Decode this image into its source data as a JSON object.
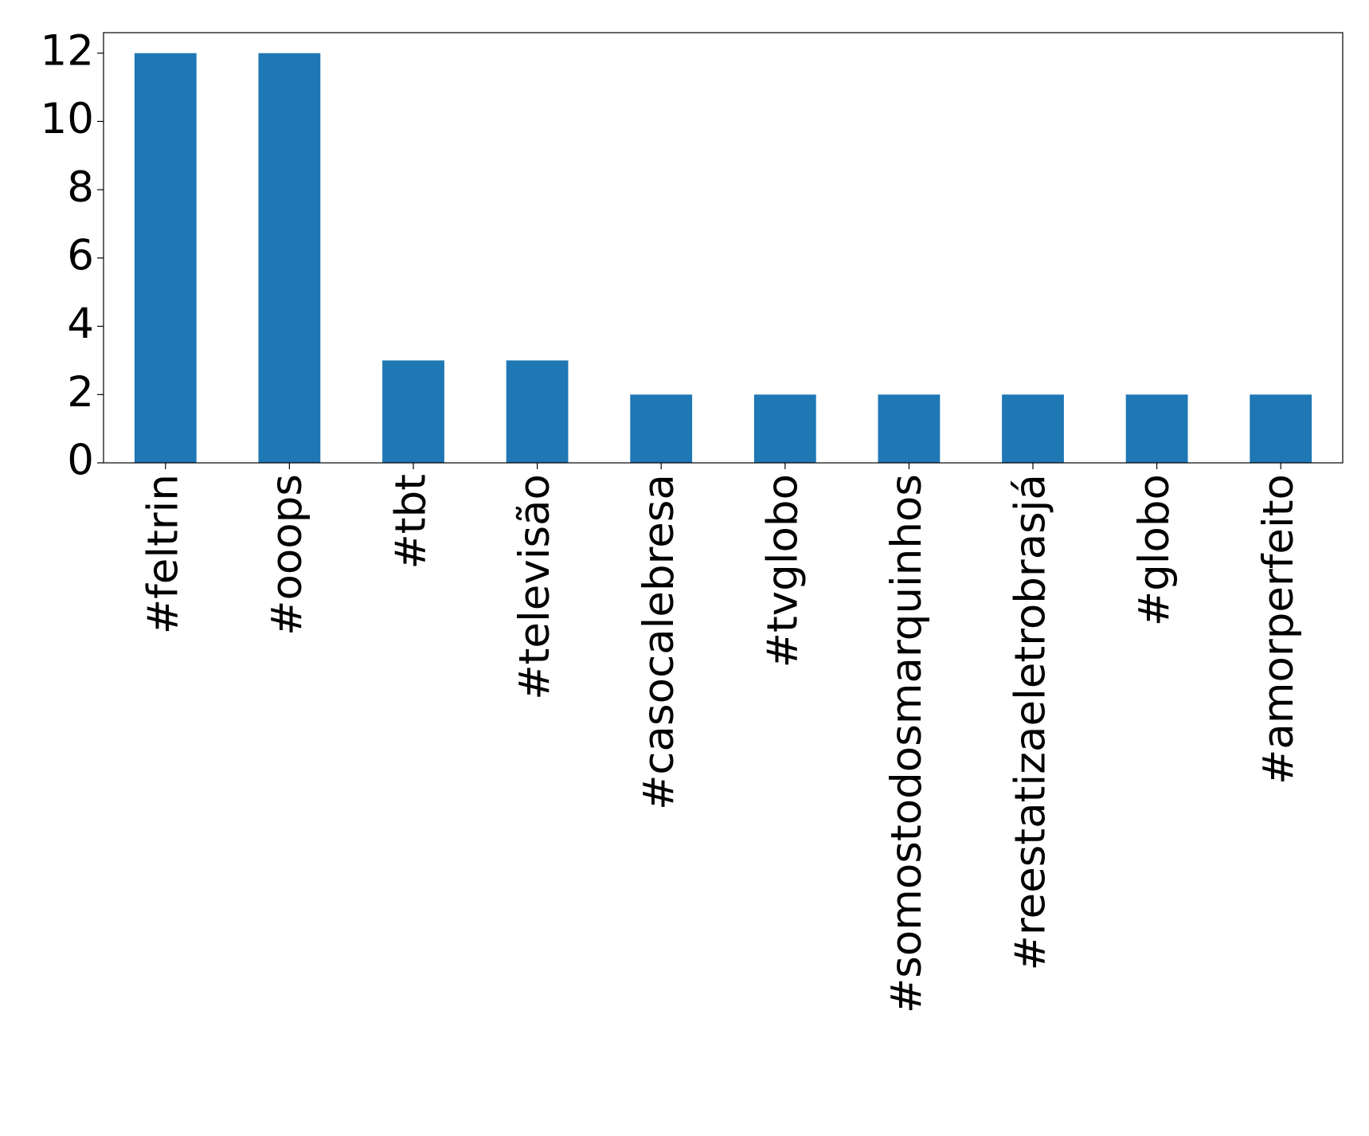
{
  "chart_data": {
    "type": "bar",
    "categories": [
      "#feltrin",
      "#ooops",
      "#tbt",
      "#televisão",
      "#casocalebresa",
      "#tvglobo",
      "#somostodosmarquinhos",
      "#reestatizaeletrobrasjá",
      "#globo",
      "#amorperfeito"
    ],
    "values": [
      12,
      12,
      3,
      3,
      2,
      2,
      2,
      2,
      2,
      2
    ],
    "color": "#1f77b4",
    "ylim": [
      0,
      12.6
    ],
    "yticks": [
      0,
      2,
      4,
      6,
      8,
      10,
      12
    ],
    "grid": false
  }
}
